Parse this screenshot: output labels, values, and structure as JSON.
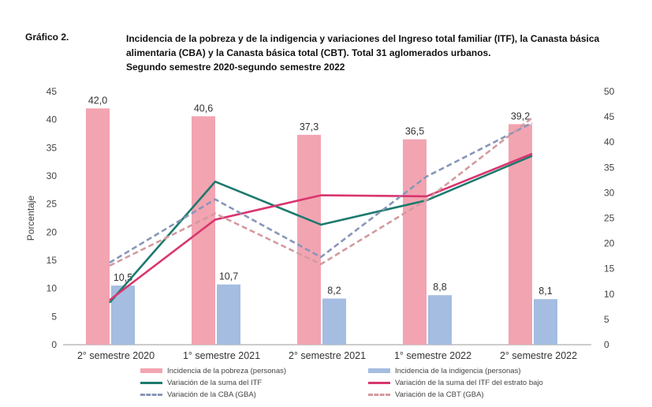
{
  "header": {
    "label": "Gráfico 2.",
    "title_lines": [
      "Incidencia de la pobreza y de la indigencia y variaciones del Ingreso total familiar (ITF), la Canasta básica",
      "alimentaria (CBA) y la Canasta básica total (CBT). Total 31 aglomerados urbanos.",
      "Segundo semestre 2020-segundo semestre 2022"
    ]
  },
  "chart_data": {
    "type": "bar",
    "categories": [
      "2° semestre 2020",
      "1° semestre 2021",
      "2° semestre 2021",
      "1° semestre 2022",
      "2° semestre 2022"
    ],
    "ylabel": "Porcentaje",
    "ylim": [
      0,
      45
    ],
    "yticks": [
      0,
      5,
      10,
      15,
      20,
      25,
      30,
      35,
      40,
      45
    ],
    "y2lim": [
      0,
      50
    ],
    "y2ticks": [
      0,
      5,
      10,
      15,
      20,
      25,
      30,
      35,
      40,
      45,
      50
    ],
    "grid": false,
    "legend_position": "bottom",
    "bars": [
      {
        "name": "Incidencia de la pobreza (personas)",
        "color": "#f2a4b1",
        "values": [
          42.0,
          40.6,
          37.3,
          36.5,
          39.2
        ],
        "labels": [
          "42,0",
          "40,6",
          "37,3",
          "36,5",
          "39,2"
        ]
      },
      {
        "name": "Incidencia de la indigencia (personas)",
        "color": "#a4bde0",
        "values": [
          10.5,
          10.7,
          8.2,
          8.8,
          8.1
        ],
        "labels": [
          "10,5",
          "10,7",
          "8,2",
          "8,8",
          "8,1"
        ]
      }
    ],
    "lines": [
      {
        "name": "Variación de la suma del ITF",
        "color": "#1d7a6e",
        "dash": "solid",
        "axis": "right",
        "values": [
          8.3,
          32.2,
          23.7,
          28.5,
          37.3
        ]
      },
      {
        "name": "Variación de la suma del ITF del estrato bajo",
        "color": "#d9356f",
        "dash": "solid",
        "axis": "right",
        "values": [
          8.8,
          24.7,
          29.5,
          29.3,
          37.7
        ]
      },
      {
        "name": "Variación de la CBA (GBA)",
        "color": "#8896b8",
        "dash": "dashed",
        "axis": "right",
        "values": [
          16.2,
          28.7,
          17.3,
          33.2,
          43.8
        ]
      },
      {
        "name": "Variación de la CBT (GBA)",
        "color": "#d49a9e",
        "dash": "dashed",
        "axis": "right",
        "values": [
          15.6,
          25.9,
          15.9,
          28.6,
          44.8
        ]
      }
    ]
  }
}
